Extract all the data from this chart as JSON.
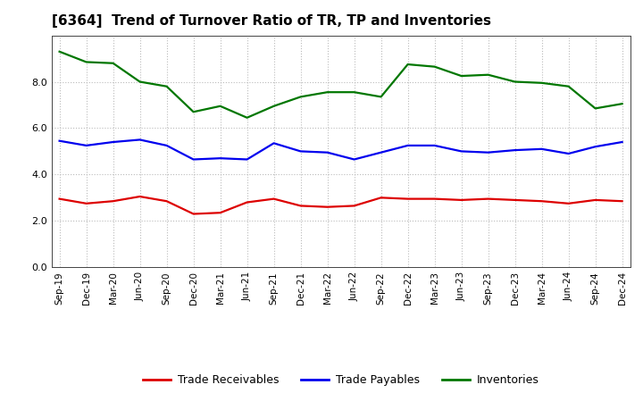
{
  "title": "[6364]  Trend of Turnover Ratio of TR, TP and Inventories",
  "labels": [
    "Sep-19",
    "Dec-19",
    "Mar-20",
    "Jun-20",
    "Sep-20",
    "Dec-20",
    "Mar-21",
    "Jun-21",
    "Sep-21",
    "Dec-21",
    "Mar-22",
    "Jun-22",
    "Sep-22",
    "Dec-22",
    "Mar-23",
    "Jun-23",
    "Sep-23",
    "Dec-23",
    "Mar-24",
    "Jun-24",
    "Sep-24",
    "Dec-24"
  ],
  "trade_receivables": [
    2.95,
    2.75,
    2.85,
    3.05,
    2.85,
    2.3,
    2.35,
    2.8,
    2.95,
    2.65,
    2.6,
    2.65,
    3.0,
    2.95,
    2.95,
    2.9,
    2.95,
    2.9,
    2.85,
    2.75,
    2.9,
    2.85
  ],
  "trade_payables": [
    5.45,
    5.25,
    5.4,
    5.5,
    5.25,
    4.65,
    4.7,
    4.65,
    5.35,
    5.0,
    4.95,
    4.65,
    4.95,
    5.25,
    5.25,
    5.0,
    4.95,
    5.05,
    5.1,
    4.9,
    5.2,
    5.4
  ],
  "inventories": [
    9.3,
    8.85,
    8.8,
    8.0,
    7.8,
    6.7,
    6.95,
    6.45,
    6.95,
    7.35,
    7.55,
    7.55,
    7.35,
    8.75,
    8.65,
    8.25,
    8.3,
    8.0,
    7.95,
    7.8,
    6.85,
    7.05
  ],
  "color_tr": "#dd0000",
  "color_tp": "#0000ee",
  "color_inv": "#007700",
  "ylim": [
    0.0,
    10.0
  ],
  "yticks": [
    0.0,
    2.0,
    4.0,
    6.0,
    8.0
  ],
  "ytick_labels": [
    "0.0",
    "2.0",
    "4.0",
    "6.0",
    "8.0"
  ],
  "legend_tr": "Trade Receivables",
  "legend_tp": "Trade Payables",
  "legend_inv": "Inventories",
  "background_color": "#ffffff",
  "plot_bg_color": "#ffffff",
  "grid_color": "#bbbbbb",
  "linewidth": 1.6,
  "title_fontsize": 11,
  "tick_fontsize": 7.5,
  "legend_fontsize": 9
}
